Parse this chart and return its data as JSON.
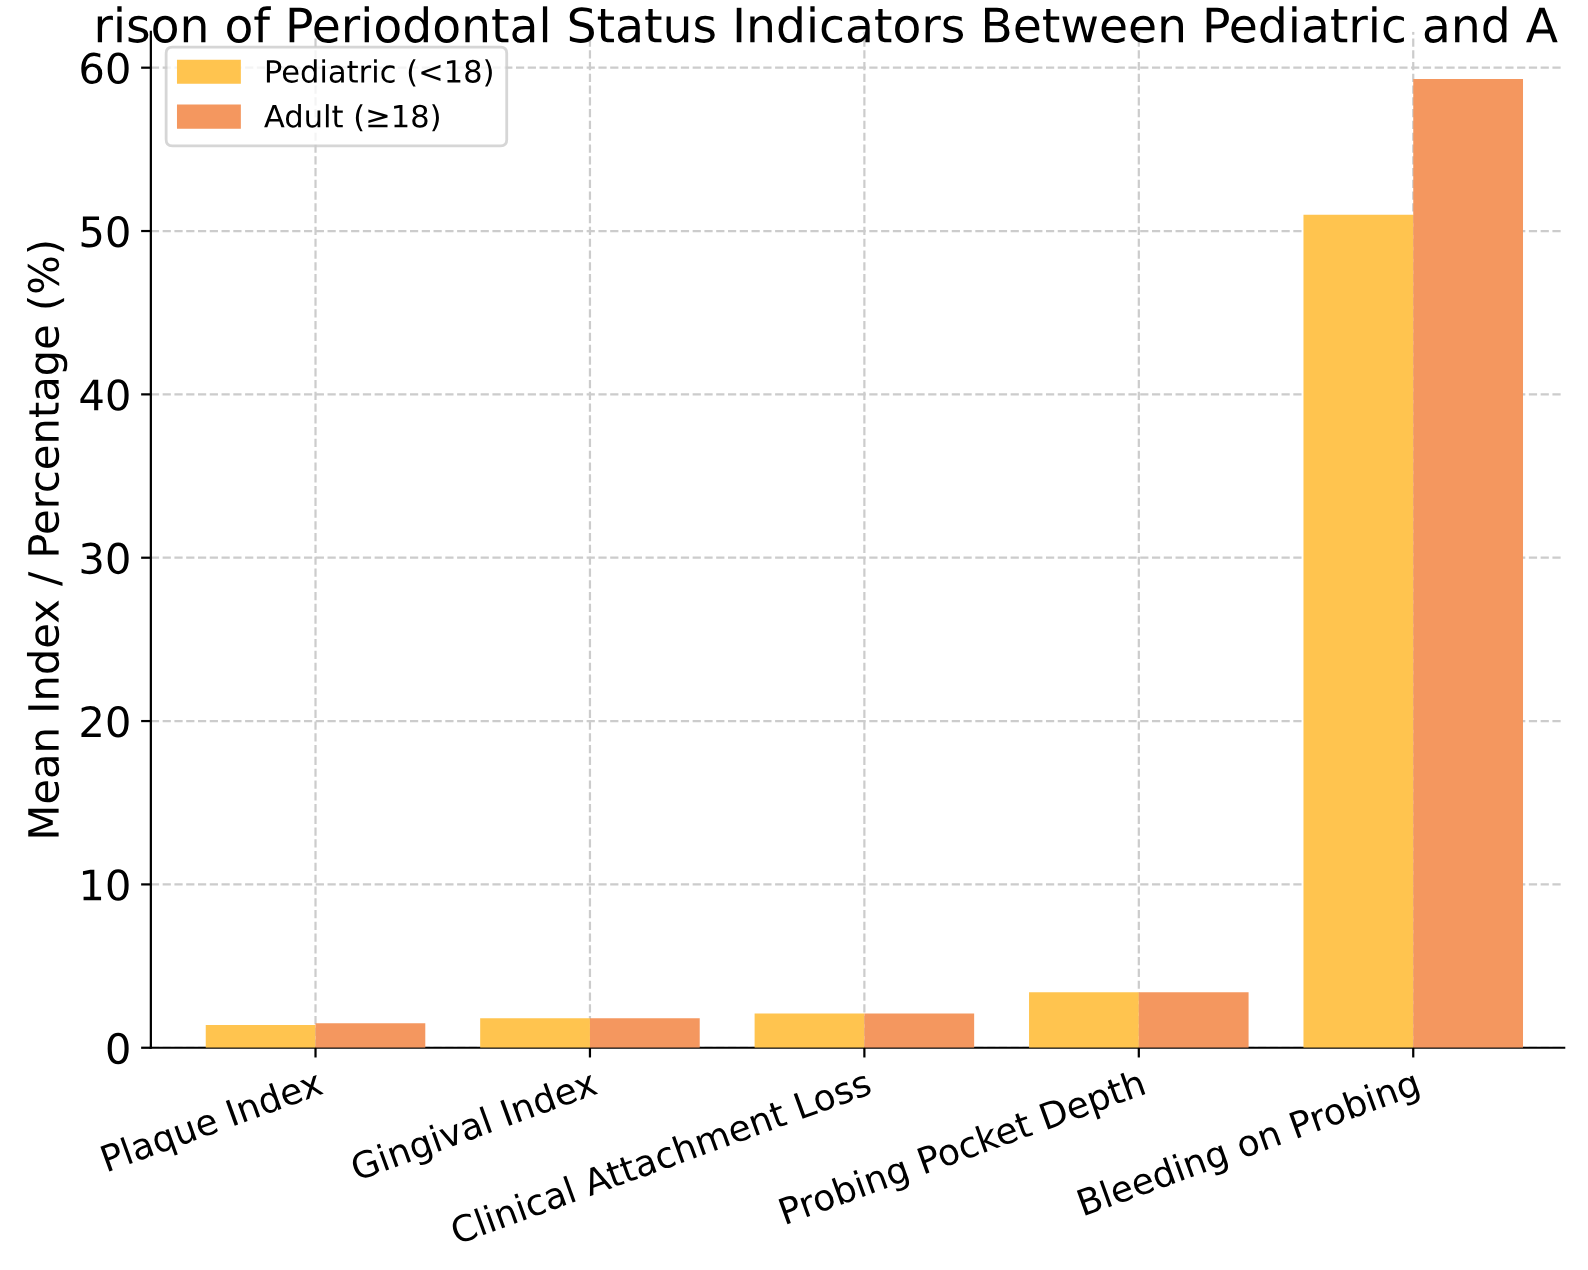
{
  "chart_data": {
    "type": "bar",
    "title": "rison of Periodontal Status Indicators Between Pediatric and A",
    "ylabel": "Mean Index / Percentage (%)",
    "categories": [
      "Plaque Index",
      "Gingival Index",
      "Clinical Attachment Loss",
      "Probing Pocket Depth",
      "Bleeding on Probing"
    ],
    "series": [
      {
        "name": "Pediatric (<18)",
        "color": "#ffc44f",
        "values": [
          1.4,
          1.8,
          2.1,
          3.4,
          51.0
        ]
      },
      {
        "name": "Adult (≥18)",
        "color": "#f4975f",
        "values": [
          1.5,
          1.8,
          2.1,
          3.4,
          59.3
        ]
      }
    ],
    "ylim": [
      0,
      62.2
    ],
    "yticks": [
      0,
      10,
      20,
      30,
      40,
      50,
      60
    ],
    "grid": true,
    "legend": "top left"
  }
}
